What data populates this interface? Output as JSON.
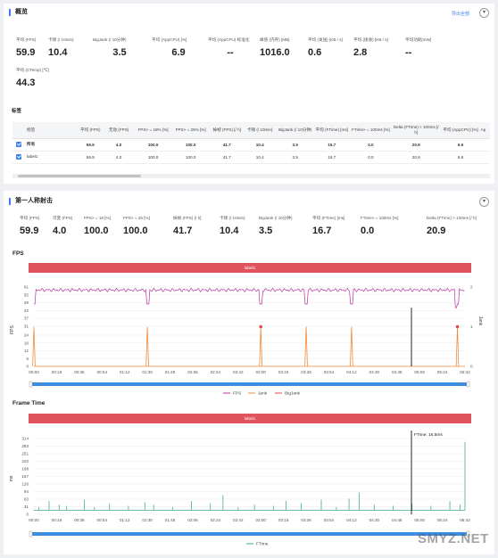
{
  "overview": {
    "title": "概览",
    "export_label": "导出全部",
    "metrics": [
      {
        "label": "平均 (FPS)",
        "value": "59.9"
      },
      {
        "label": "卡顿 (/ 10min)",
        "value": "10.4"
      },
      {
        "label": "BigJank (/ 10分钟)",
        "value": "3.5"
      },
      {
        "label": "平均 (AppCPU) [%]",
        "value": "6.9"
      },
      {
        "label": "平均 (AppCPU) 标准化",
        "value": "--"
      },
      {
        "label": "峰值 (内存) [MB]",
        "value": "1016.0"
      },
      {
        "label": "平均 (发送) [KB / s]",
        "value": "0.6"
      },
      {
        "label": "平均 (接收) [KB / s]",
        "value": "2.8"
      },
      {
        "label": "平均功耗[mW]",
        "value": "--"
      },
      {
        "label": "平均 (CTemp) [℃]",
        "value": "44.3"
      }
    ]
  },
  "labels_table": {
    "title": "标签",
    "headers": [
      "标签",
      "平均 (FPS)",
      "无动 (FPS)",
      "FPS> = 18% [%]",
      "FPS> = 25% [%]",
      "掉帧 (FPS) [/ h]",
      "卡顿 (/ 10min)",
      "BigJank (/ 10分钟)",
      "平均 (FTime) [ms]",
      "FTime> = 100ms [%]",
      "Delta (FTime) > 100ms [/ h]",
      "平均 (AppCPU) [%]",
      "Ap"
    ],
    "rows": [
      {
        "label": "所有",
        "cells": [
          "59.9",
          "4.0",
          "100.0",
          "100.0",
          "41.7",
          "10.4",
          "3.5",
          "16.7",
          "0.0",
          "20.9",
          "6.9"
        ]
      },
      {
        "label": "label1",
        "cells": [
          "59.9",
          "4.0",
          "100.0",
          "100.0",
          "41.7",
          "10.4",
          "3.5",
          "16.7",
          "0.0",
          "20.9",
          "6.9"
        ]
      }
    ]
  },
  "game": {
    "title": "第一人称射击",
    "metrics": [
      {
        "label": "平均 (FPS)",
        "value": "59.9"
      },
      {
        "label": "可变 (FPS)",
        "value": "4.0"
      },
      {
        "label": "FPS> = 18 [%]",
        "value": "100.0"
      },
      {
        "label": "FPS> = 25 [%]",
        "value": "100.0"
      },
      {
        "label": "掉帧 (FPS) [/ h]",
        "value": "41.7"
      },
      {
        "label": "卡顿 (/ 10min)",
        "value": "10.4"
      },
      {
        "label": "BigJank (/ 10分钟)",
        "value": "3.5"
      },
      {
        "label": "平均 (FTime) [ms]",
        "value": "16.7"
      },
      {
        "label": "FTime> = 100ms [%]",
        "value": "0.0"
      },
      {
        "label": "Delta (FTime) > 100ms [/ h]",
        "value": "20.9"
      }
    ]
  },
  "fps_chart": {
    "title": "FPS",
    "band_label": "label1"
  },
  "ftime_chart": {
    "title": "Frame Time",
    "band_label": "label1"
  },
  "chart_data": [
    {
      "type": "line",
      "title": "FPS",
      "ylabel": "FPS",
      "y2label": "Jank",
      "yticks": [
        0,
        6,
        12,
        18,
        24,
        31,
        37,
        43,
        49,
        55,
        61
      ],
      "y2ticks": [
        0,
        1,
        2
      ],
      "xticks": [
        "00:00",
        "00:18",
        "00:36",
        "00:54",
        "01:12",
        "01:30",
        "01:48",
        "02:06",
        "02:24",
        "02:42",
        "03:00",
        "03:18",
        "03:36",
        "03:54",
        "04:12",
        "04:30",
        "04:48",
        "05:06",
        "05:24",
        "05:42"
      ],
      "legend": [
        "FPS",
        "Jank",
        "BigJank"
      ],
      "colors": {
        "fps": "#b5359e",
        "jank": "#f08a3c",
        "bigjank": "#e0464e",
        "cursor": "#111111"
      },
      "fps_baseline": 59.9,
      "jank_times": [
        "00:00",
        "01:30",
        "03:00",
        "03:36",
        "04:12",
        "05:36"
      ],
      "bigjank_times": [
        "03:00",
        "05:36"
      ]
    },
    {
      "type": "line",
      "title": "Frame Time",
      "ylabel": "ms",
      "yticks": [
        0,
        31,
        63,
        94,
        126,
        157,
        188,
        220,
        251,
        283,
        314
      ],
      "xticks": [
        "00:00",
        "00:18",
        "00:36",
        "00:54",
        "01:12",
        "01:30",
        "01:48",
        "02:06",
        "02:24",
        "02:42",
        "03:00",
        "03:18",
        "03:36",
        "03:54",
        "04:12",
        "04:30",
        "04:48",
        "05:06",
        "05:24",
        "05:42"
      ],
      "legend": [
        "FTime"
      ],
      "colors": {
        "ftime": "#3fae84",
        "cursor": "#111111"
      },
      "cursor_label": "FTime: 16.5ms"
    }
  ],
  "watermark": "SMYZ.NET"
}
